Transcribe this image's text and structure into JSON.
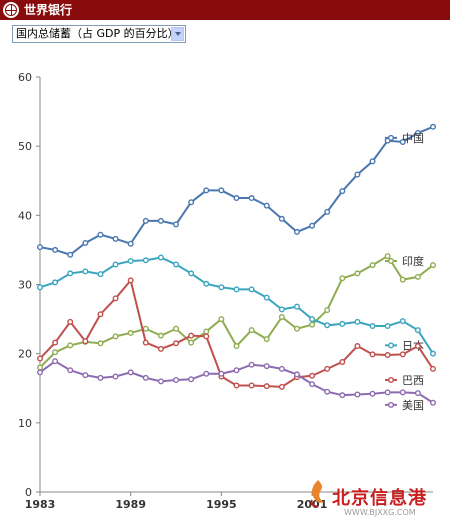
{
  "header": {
    "title": "世界银行"
  },
  "selector": {
    "selected": "国内总储蓄（占 GDP 的百分比）"
  },
  "watermark": {
    "title": "北京信息港",
    "url": "WWW.BJXXG.COM"
  },
  "colors": {
    "header_bg": "#8a0b0b",
    "china": "#4a77b0",
    "india": "#8fac50",
    "japan": "#3aa5bf",
    "brazil": "#c0504d",
    "usa": "#8e6bb0"
  },
  "chart_data": {
    "type": "line",
    "title": "",
    "xlabel": "",
    "ylabel": "",
    "x": [
      1983,
      1984,
      1985,
      1986,
      1987,
      1988,
      1989,
      1990,
      1991,
      1992,
      1993,
      1994,
      1995,
      1996,
      1997,
      1998,
      1999,
      2000,
      2001,
      2002,
      2003,
      2004,
      2005,
      2006,
      2007,
      2008,
      2009
    ],
    "x_ticks": [
      "1983",
      "1989",
      "1995",
      "2001"
    ],
    "x_tick_values": [
      1983,
      1989,
      1995,
      2001
    ],
    "xlim": [
      1983,
      2009
    ],
    "y_ticks": [
      "0",
      "10",
      "20",
      "30",
      "40",
      "50",
      "60"
    ],
    "ylim": [
      0,
      60
    ],
    "grid": false,
    "legend": "labels at line ends (right)",
    "series": [
      {
        "name": "中国",
        "color": "#4a77b0",
        "values": [
          35.4,
          35.0,
          34.3,
          36.0,
          37.2,
          36.6,
          35.9,
          39.2,
          39.2,
          38.7,
          41.9,
          43.6,
          43.6,
          42.5,
          42.5,
          41.4,
          39.5,
          37.6,
          38.5,
          40.5,
          43.5,
          45.9,
          47.8,
          50.8,
          50.6,
          51.9,
          52.8
        ]
      },
      {
        "name": "印度",
        "color": "#8fac50",
        "values": [
          18.0,
          20.2,
          21.2,
          21.7,
          21.5,
          22.5,
          23.0,
          23.6,
          22.6,
          23.6,
          21.6,
          23.2,
          25.0,
          21.1,
          23.4,
          22.1,
          25.3,
          23.6,
          24.2,
          26.3,
          30.9,
          31.6,
          32.8,
          34.1,
          30.7,
          31.1,
          32.8
        ]
      },
      {
        "name": "日本",
        "color": "#3aa5bf",
        "values": [
          29.6,
          30.3,
          31.6,
          31.9,
          31.5,
          32.9,
          33.4,
          33.5,
          33.9,
          32.9,
          31.6,
          30.1,
          29.6,
          29.3,
          29.3,
          28.1,
          26.4,
          26.8,
          25.0,
          24.1,
          24.3,
          24.6,
          24.0,
          24.0,
          24.7,
          23.4,
          20.0
        ]
      },
      {
        "name": "巴西",
        "color": "#c0504d",
        "values": [
          19.3,
          21.6,
          24.6,
          21.8,
          25.7,
          28.0,
          30.6,
          21.6,
          20.7,
          21.5,
          22.6,
          22.5,
          16.7,
          15.4,
          15.4,
          15.3,
          15.2,
          16.6,
          16.8,
          17.8,
          18.8,
          21.1,
          19.9,
          19.8,
          19.9,
          21.1,
          17.8
        ]
      },
      {
        "name": "美国",
        "color": "#8e6bb0",
        "values": [
          17.3,
          18.9,
          17.6,
          16.9,
          16.5,
          16.7,
          17.3,
          16.5,
          16.0,
          16.2,
          16.3,
          17.1,
          17.1,
          17.6,
          18.4,
          18.2,
          17.8,
          17.0,
          15.6,
          14.5,
          14.0,
          14.1,
          14.2,
          14.4,
          14.4,
          14.3,
          12.9
        ]
      }
    ]
  }
}
